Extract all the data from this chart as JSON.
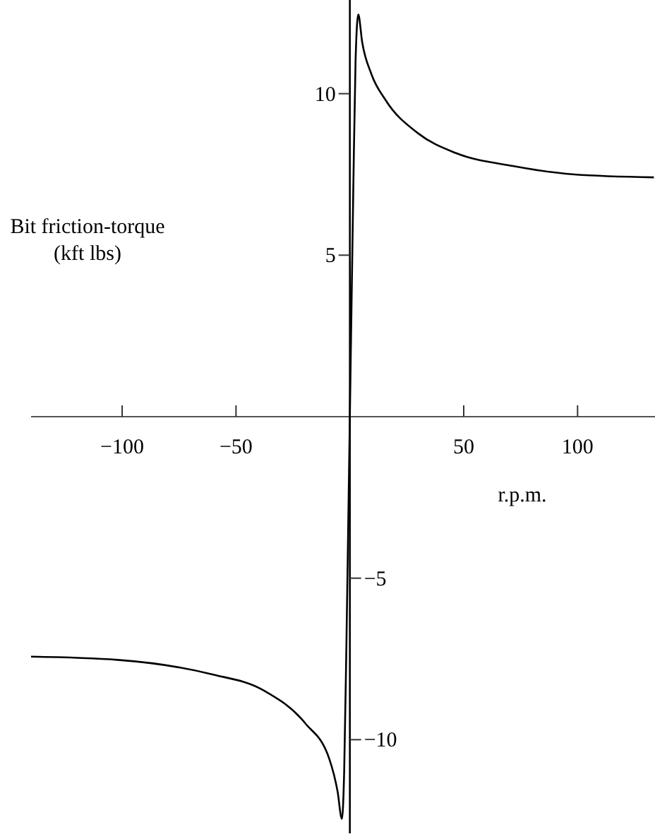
{
  "chart_data": {
    "type": "line",
    "xlabel": "r.p.m.",
    "ylabel": "Bit friction-torque\n(kft lbs)",
    "color": "#000000",
    "x": [
      -140,
      -102,
      -61,
      -38,
      -19.5,
      -9,
      -5.4,
      -3.5,
      -2.5,
      -1.5,
      0,
      1.5,
      2.5,
      3.7,
      5.4,
      9.5,
      15.7,
      30,
      46.6,
      71.5,
      98.6,
      133.5
    ],
    "values": [
      -7.43,
      -7.53,
      -7.97,
      -8.47,
      -9.5,
      -10.6,
      -11.6,
      -12.45,
      -11,
      -7,
      0,
      7,
      11,
      12.45,
      11.6,
      10.6,
      9.8,
      8.77,
      8.16,
      7.76,
      7.5,
      7.41
    ],
    "xlim": [
      -140,
      134
    ],
    "ylim": [
      -12.9,
      12.9
    ],
    "xticks": [
      {
        "value": -100,
        "label": "−100"
      },
      {
        "value": -50,
        "label": "−50"
      },
      50,
      100
    ],
    "yticks": [
      10,
      5
    ],
    "y2lim": [
      -12.9,
      12.9
    ],
    "y2ticks": [
      {
        "value": -5,
        "label": "−5"
      },
      {
        "value": -10,
        "label": "−10"
      }
    ]
  }
}
